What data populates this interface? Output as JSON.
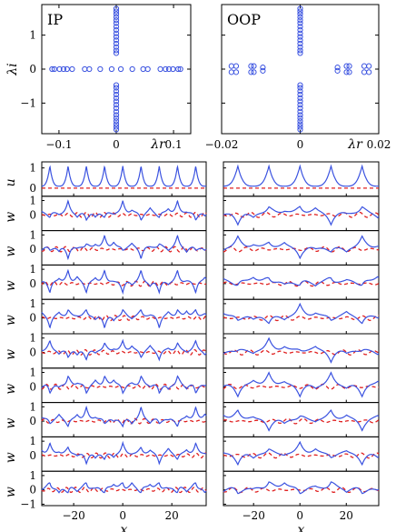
{
  "chart_data": [
    {
      "type": "scatter",
      "panel_label": "IP",
      "xlabel": "λr",
      "ylabel": "λi",
      "xlim": [
        -0.13,
        0.13
      ],
      "ylim": [
        -1.9,
        1.9
      ],
      "xticks": [
        -0.1,
        0,
        0.1
      ],
      "xtick_labels": [
        "−0.1",
        "0",
        "0.1"
      ],
      "yticks": [
        -1,
        0,
        1
      ],
      "ytick_labels": [
        "−1",
        "0",
        "1"
      ],
      "marker": "open-circle",
      "color": "#3a52e0",
      "points": [
        [
          -0.112,
          0
        ],
        [
          -0.108,
          0
        ],
        [
          -0.099,
          0
        ],
        [
          -0.092,
          0
        ],
        [
          -0.086,
          0
        ],
        [
          -0.077,
          0
        ],
        [
          -0.055,
          0
        ],
        [
          -0.047,
          0
        ],
        [
          -0.028,
          0
        ],
        [
          -0.008,
          0
        ],
        [
          0.008,
          0
        ],
        [
          0.028,
          0
        ],
        [
          0.047,
          0
        ],
        [
          0.055,
          0
        ],
        [
          0.077,
          0
        ],
        [
          0.086,
          0
        ],
        [
          0.092,
          0
        ],
        [
          0.099,
          0
        ],
        [
          0.108,
          0
        ],
        [
          0.112,
          0
        ],
        [
          0,
          1.78
        ],
        [
          0,
          1.7
        ],
        [
          0,
          1.62
        ],
        [
          0,
          1.53
        ],
        [
          0,
          1.44
        ],
        [
          0,
          1.35
        ],
        [
          0,
          1.25
        ],
        [
          0,
          1.15
        ],
        [
          0,
          1.05
        ],
        [
          0,
          0.95
        ],
        [
          0,
          0.85
        ],
        [
          0,
          0.75
        ],
        [
          0,
          0.65
        ],
        [
          0,
          0.55
        ],
        [
          0,
          0.47
        ],
        [
          0,
          -0.47
        ],
        [
          0,
          -0.55
        ],
        [
          0,
          -0.65
        ],
        [
          0,
          -0.75
        ],
        [
          0,
          -0.85
        ],
        [
          0,
          -0.95
        ],
        [
          0,
          -1.05
        ],
        [
          0,
          -1.15
        ],
        [
          0,
          -1.25
        ],
        [
          0,
          -1.35
        ],
        [
          0,
          -1.44
        ],
        [
          0,
          -1.53
        ],
        [
          0,
          -1.62
        ],
        [
          0,
          -1.7
        ],
        [
          0,
          -1.78
        ]
      ]
    },
    {
      "type": "scatter",
      "panel_label": "OOP",
      "xlabel": "λr",
      "ylabel": "",
      "xlim": [
        -0.02,
        0.02
      ],
      "ylim": [
        -1.9,
        1.9
      ],
      "xticks": [
        -0.02,
        0,
        0.02
      ],
      "xtick_labels": [
        "−0.02",
        "0",
        "0.02"
      ],
      "yticks": [
        -1,
        0,
        1
      ],
      "ytick_labels": [],
      "marker": "open-circle",
      "color": "#3a52e0",
      "points": [
        [
          -0.0175,
          0.09
        ],
        [
          -0.0175,
          -0.09
        ],
        [
          -0.0163,
          0.09
        ],
        [
          -0.0163,
          -0.09
        ],
        [
          -0.0125,
          0.09
        ],
        [
          -0.0125,
          -0.09
        ],
        [
          -0.0118,
          0.09
        ],
        [
          -0.0118,
          -0.09
        ],
        [
          -0.0095,
          0.05
        ],
        [
          -0.0095,
          -0.05
        ],
        [
          0.0095,
          0.05
        ],
        [
          0.0095,
          -0.05
        ],
        [
          0.0118,
          0.09
        ],
        [
          0.0118,
          -0.09
        ],
        [
          0.0125,
          0.09
        ],
        [
          0.0125,
          -0.09
        ],
        [
          0.0163,
          0.09
        ],
        [
          0.0163,
          -0.09
        ],
        [
          0.0175,
          0.09
        ],
        [
          0.0175,
          -0.09
        ],
        [
          0,
          1.78
        ],
        [
          0,
          1.7
        ],
        [
          0,
          1.62
        ],
        [
          0,
          1.53
        ],
        [
          0,
          1.44
        ],
        [
          0,
          1.35
        ],
        [
          0,
          1.25
        ],
        [
          0,
          1.15
        ],
        [
          0,
          1.05
        ],
        [
          0,
          0.95
        ],
        [
          0,
          0.85
        ],
        [
          0,
          0.75
        ],
        [
          0,
          0.65
        ],
        [
          0,
          0.55
        ],
        [
          0,
          0.47
        ],
        [
          0,
          -0.47
        ],
        [
          0,
          -0.55
        ],
        [
          0,
          -0.65
        ],
        [
          0,
          -0.75
        ],
        [
          0,
          -0.85
        ],
        [
          0,
          -0.95
        ],
        [
          0,
          -1.05
        ],
        [
          0,
          -1.15
        ],
        [
          0,
          -1.25
        ],
        [
          0,
          -1.35
        ],
        [
          0,
          -1.44
        ],
        [
          0,
          -1.53
        ],
        [
          0,
          -1.62
        ],
        [
          0,
          -1.7
        ],
        [
          0,
          -1.78
        ]
      ]
    },
    {
      "type": "line",
      "description_columns": [
        "IP",
        "OOP"
      ],
      "xlabel": "x",
      "xlim": [
        -33,
        34
      ],
      "xticks": [
        -20,
        0,
        20
      ],
      "xtick_labels": [
        "−20",
        "0",
        "20"
      ],
      "colors": {
        "primary": "#3a52e0",
        "secondary": "#e02020"
      },
      "rows": [
        {
          "ylabel": "u",
          "yticks": [
            0,
            1
          ],
          "ytick_labels": [
            "0",
            "1"
          ],
          "ylim": [
            -0.4,
            1.3
          ]
        },
        {
          "ylabel": "w",
          "yticks": [
            0,
            1
          ],
          "ytick_labels": [
            "0",
            "1"
          ],
          "ylim": [
            -1.1,
            1.3
          ]
        },
        {
          "ylabel": "w",
          "yticks": [
            0,
            1
          ],
          "ytick_labels": [
            "0",
            "1"
          ],
          "ylim": [
            -1.1,
            1.3
          ]
        },
        {
          "ylabel": "w",
          "yticks": [
            0,
            1
          ],
          "ytick_labels": [
            "0",
            "1"
          ],
          "ylim": [
            -1.1,
            1.3
          ]
        },
        {
          "ylabel": "w",
          "yticks": [
            0,
            1
          ],
          "ytick_labels": [
            "0",
            "1"
          ],
          "ylim": [
            -1.1,
            1.3
          ]
        },
        {
          "ylabel": "w",
          "yticks": [
            0,
            1
          ],
          "ytick_labels": [
            "0",
            "1"
          ],
          "ylim": [
            -1.1,
            1.3
          ]
        },
        {
          "ylabel": "w",
          "yticks": [
            0,
            1
          ],
          "ytick_labels": [
            "0",
            "1"
          ],
          "ylim": [
            -1.1,
            1.3
          ]
        },
        {
          "ylabel": "w",
          "yticks": [
            0,
            1
          ],
          "ytick_labels": [
            "0",
            "1"
          ],
          "ylim": [
            -1.1,
            1.3
          ]
        },
        {
          "ylabel": "w",
          "yticks": [
            0,
            1
          ],
          "ytick_labels": [
            "0",
            "1"
          ],
          "ylim": [
            -1.1,
            1.3
          ]
        },
        {
          "ylabel": "w",
          "yticks": [
            -1,
            0,
            1
          ],
          "ytick_labels": [
            "−1",
            "0",
            "1"
          ],
          "ylim": [
            -1.1,
            1.3
          ]
        }
      ],
      "columns": [
        {
          "name": "IP",
          "peaks": 9,
          "period": 7.43
        },
        {
          "name": "OOP",
          "peaks": 5,
          "period": 13.4
        }
      ]
    }
  ]
}
